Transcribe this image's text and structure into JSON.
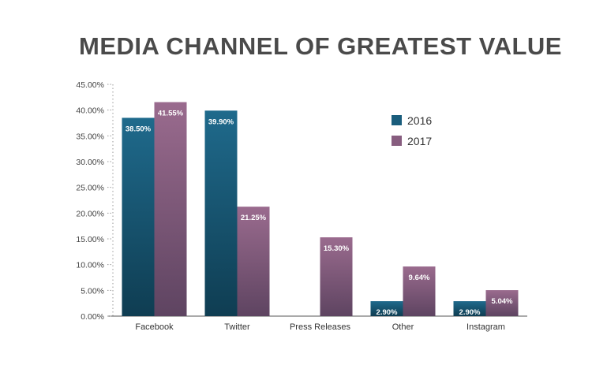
{
  "chart_data": {
    "type": "bar",
    "title": "MEDIA CHANNEL OF GREATEST VALUE",
    "xlabel": "",
    "ylabel": "",
    "categories": [
      "Facebook",
      "Twitter",
      "Press Releases",
      "Other",
      "Instagram"
    ],
    "series": [
      {
        "name": "2016",
        "color": "#1f6384",
        "values": [
          38.5,
          39.9,
          null,
          2.9,
          2.9
        ],
        "labels": [
          "38.50%",
          "39.90%",
          "",
          "2.90%",
          "2.90%"
        ]
      },
      {
        "name": "2017",
        "color": "#8f6384",
        "values": [
          41.55,
          21.25,
          15.3,
          9.64,
          5.04
        ],
        "labels": [
          "41.55%",
          "21.25%",
          "15.30%",
          "9.64%",
          "5.04%"
        ]
      }
    ],
    "ylim": [
      0,
      45
    ],
    "yticks": [
      0,
      5,
      10,
      15,
      20,
      25,
      30,
      35,
      40,
      45
    ],
    "ytick_labels": [
      "0.00%",
      "5.00%",
      "10.00%",
      "15.00%",
      "20.00%",
      "25.00%",
      "30.00%",
      "35.00%",
      "40.00%",
      "45.00%"
    ],
    "legend_position": "top-right",
    "grid": false
  }
}
